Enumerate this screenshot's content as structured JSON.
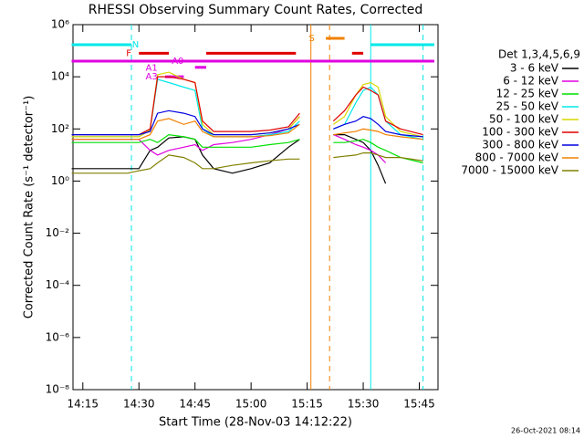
{
  "chart_data": {
    "type": "line",
    "title": "RHESSI Observing Summary Count Rates, Corrected",
    "xlabel": "Start Time (28-Nov-03 14:12:22)",
    "ylabel": "Corrected Count Rate (s⁻¹ detector⁻¹)",
    "legend_title": "Det 1,3,4,5,6,9",
    "footer": "26-Oct-2021 08:14",
    "log_y": true,
    "ylim": [
      1e-08,
      1000000
    ],
    "yticks": [
      {
        "value": 1e-08,
        "label": "10⁻⁸"
      },
      {
        "value": 1e-06,
        "label": "10⁻⁶"
      },
      {
        "value": 0.0001,
        "label": "10⁻⁴"
      },
      {
        "value": 0.01,
        "label": "10⁻²"
      },
      {
        "value": 1,
        "label": "10⁰"
      },
      {
        "value": 100,
        "label": "10²"
      },
      {
        "value": 10000,
        "label": "10⁴"
      },
      {
        "value": 1000000,
        "label": "10⁶"
      }
    ],
    "xlim": [
      "14:12:22",
      "15:50"
    ],
    "xticks": [
      "14:15",
      "14:30",
      "14:45",
      "15:00",
      "15:15",
      "15:30",
      "15:45"
    ],
    "x": [
      "14:12",
      "14:20",
      "14:27",
      "14:30",
      "14:33",
      "14:35",
      "14:38",
      "14:42",
      "14:45",
      "14:47",
      "14:50",
      "14:55",
      "15:00",
      "15:05",
      "15:10",
      "15:13",
      "15:17",
      "15:22",
      "15:25",
      "15:28",
      "15:30",
      "15:32",
      "15:34",
      "15:36",
      "15:40",
      "15:46"
    ],
    "series": [
      {
        "name": "3 - 6 keV",
        "color": "#000000",
        "values": [
          3,
          3,
          3,
          3,
          15,
          20,
          45,
          50,
          40,
          10,
          3,
          2,
          3,
          5,
          20,
          40,
          null,
          60,
          60,
          40,
          30,
          15,
          4,
          0.8,
          null,
          null
        ]
      },
      {
        "name": "6 - 12 keV",
        "color": "#e000e0",
        "values": [
          40,
          40,
          40,
          40,
          15,
          10,
          15,
          20,
          25,
          15,
          25,
          30,
          40,
          60,
          100,
          300,
          null,
          60,
          40,
          25,
          20,
          15,
          10,
          5,
          null,
          null
        ]
      },
      {
        "name": "12 - 25 keV",
        "color": "#00e000",
        "values": [
          30,
          30,
          30,
          30,
          40,
          30,
          60,
          50,
          40,
          20,
          20,
          20,
          20,
          25,
          30,
          40,
          null,
          30,
          30,
          35,
          40,
          30,
          20,
          15,
          8,
          5
        ]
      },
      {
        "name": "25 - 50 keV",
        "color": "#00e8e8",
        "values": [
          50,
          50,
          50,
          50,
          90,
          8000,
          6000,
          4000,
          3000,
          100,
          50,
          50,
          50,
          60,
          80,
          200,
          null,
          100,
          150,
          1000,
          3000,
          4000,
          2000,
          200,
          60,
          40
        ]
      },
      {
        "name": "50 - 100 keV",
        "color": "#d8d800",
        "values": [
          50,
          50,
          50,
          50,
          90,
          12000,
          15000,
          8000,
          6000,
          150,
          60,
          60,
          60,
          70,
          100,
          300,
          null,
          150,
          300,
          2000,
          5000,
          6000,
          4000,
          300,
          80,
          50
        ]
      },
      {
        "name": "100 - 300 keV",
        "color": "#e00000",
        "values": [
          60,
          60,
          60,
          60,
          100,
          10000,
          10000,
          8000,
          6000,
          200,
          80,
          80,
          80,
          90,
          120,
          400,
          null,
          200,
          500,
          2000,
          4000,
          3000,
          2000,
          200,
          100,
          60
        ]
      },
      {
        "name": "300 - 800 keV",
        "color": "#0000e0",
        "values": [
          60,
          60,
          60,
          60,
          80,
          400,
          500,
          400,
          300,
          100,
          60,
          60,
          60,
          70,
          100,
          150,
          null,
          100,
          150,
          200,
          300,
          250,
          150,
          80,
          60,
          50
        ]
      },
      {
        "name": "800 - 7000 keV",
        "color": "#f08000",
        "values": [
          40,
          40,
          40,
          40,
          60,
          200,
          250,
          150,
          200,
          80,
          50,
          50,
          50,
          55,
          70,
          150,
          null,
          60,
          70,
          80,
          100,
          90,
          80,
          60,
          50,
          40
        ]
      },
      {
        "name": "7000 - 15000 keV",
        "color": "#808000",
        "values": [
          2,
          2,
          2,
          2.5,
          3,
          5,
          10,
          8,
          5,
          3,
          3,
          4,
          5,
          6,
          7,
          7,
          null,
          8,
          9,
          10,
          12,
          12,
          10,
          8,
          8,
          6
        ]
      }
    ],
    "vlines": [
      {
        "x": "14:28",
        "color": "#00e8e8",
        "dashed": true
      },
      {
        "x": "15:16",
        "color": "#f08000",
        "dashed": false
      },
      {
        "x": "15:21",
        "color": "#f08000",
        "dashed": true
      },
      {
        "x": "15:32",
        "color": "#00e8e8",
        "dashed": false
      },
      {
        "x": "15:46",
        "color": "#00e8e8",
        "dashed": true
      }
    ],
    "segments": [
      {
        "x0": "14:12",
        "x1": "14:28",
        "y": 170000,
        "color": "#00e8e8"
      },
      {
        "x0": "15:32",
        "x1": "15:49",
        "y": 170000,
        "color": "#00e8e8"
      },
      {
        "x0": "14:12",
        "x1": "15:49",
        "y": 40000,
        "color": "#e000e0"
      },
      {
        "x0": "14:30",
        "x1": "14:38",
        "y": 80000,
        "color": "#e00000"
      },
      {
        "x0": "14:48",
        "x1": "15:12",
        "y": 80000,
        "color": "#e00000"
      },
      {
        "x0": "15:27",
        "x1": "15:30",
        "y": 80000,
        "color": "#e00000"
      },
      {
        "x0": "14:45",
        "x1": "14:48",
        "y": 23000,
        "color": "#e000e0"
      },
      {
        "x0": "14:37",
        "x1": "14:42",
        "y": 10000,
        "color": "#e000e0"
      },
      {
        "x0": "15:20",
        "x1": "15:25",
        "y": 300000,
        "color": "#f08000"
      }
    ],
    "annotations": [
      {
        "text": "N",
        "x": "14:30",
        "y": 170000,
        "color": "#00e8e8"
      },
      {
        "text": "F",
        "x": "14:28",
        "y": 80000,
        "color": "#e00000"
      },
      {
        "text": "A0",
        "x": "14:42",
        "y": 40000,
        "color": "#e000e0"
      },
      {
        "text": "A1",
        "x": "14:35",
        "y": 22000,
        "color": "#e000e0"
      },
      {
        "text": "A3",
        "x": "14:35",
        "y": 10000,
        "color": "#e000e0"
      },
      {
        "text": "S",
        "x": "15:17",
        "y": 300000,
        "color": "#f08000"
      }
    ]
  }
}
